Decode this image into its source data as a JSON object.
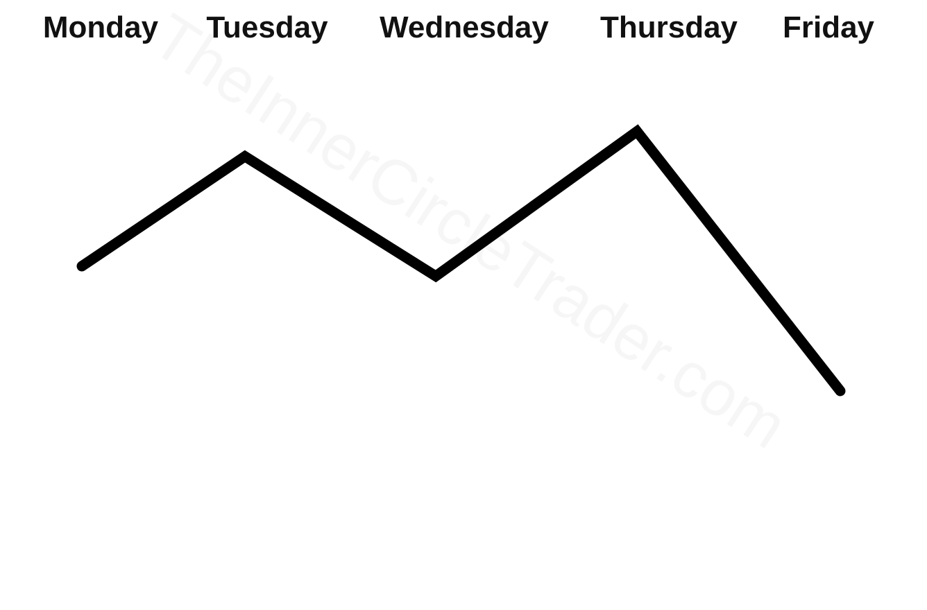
{
  "chart_data": {
    "type": "line",
    "categories": [
      "Monday",
      "Tuesday",
      "Wednesday",
      "Thursday",
      "Friday"
    ],
    "values": [
      55,
      77,
      53,
      82,
      30
    ],
    "ylim": [
      0,
      100
    ],
    "grid": false,
    "axes_visible": false,
    "line_color": "#000000"
  },
  "watermark": "TheInnerCircleTrader.com",
  "colors": {
    "background": "#ffffff",
    "text": "#111111"
  }
}
